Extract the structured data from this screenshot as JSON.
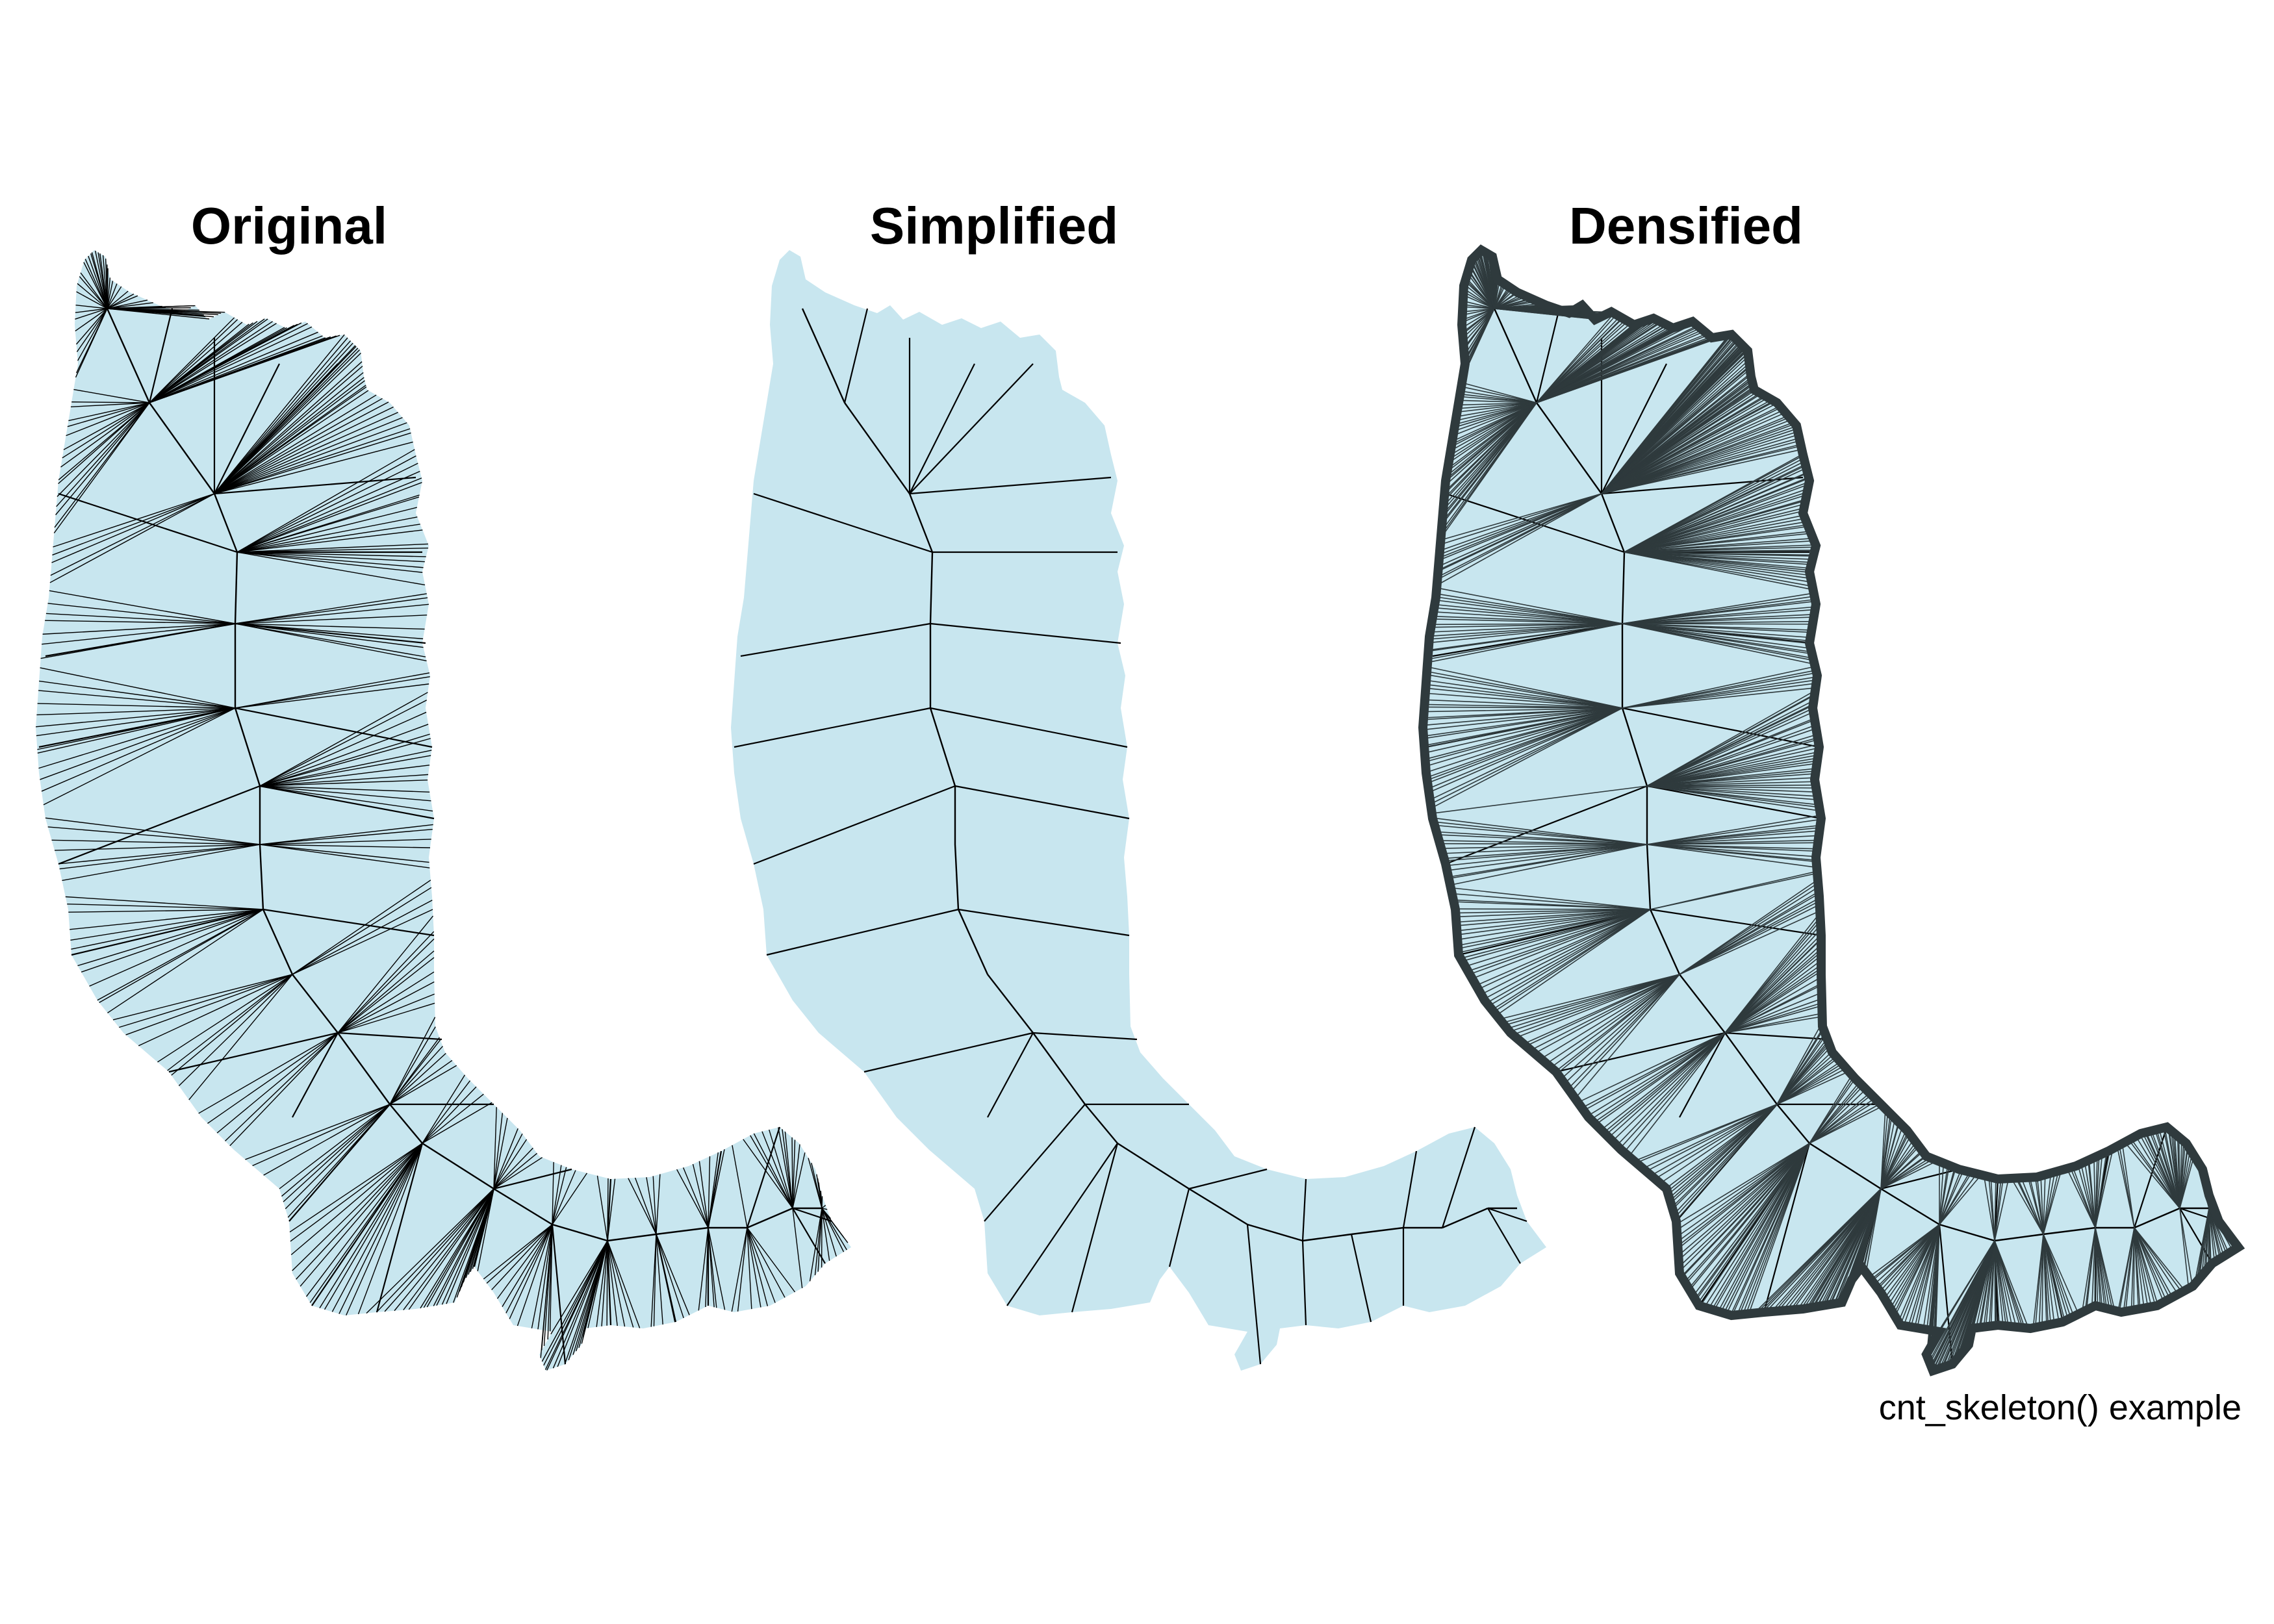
{
  "figure": {
    "panels": [
      {
        "title": "Original",
        "style": "original"
      },
      {
        "title": "Simplified",
        "style": "simplified"
      },
      {
        "title": "Densified",
        "style": "densified"
      }
    ],
    "caption": "cnt_skeleton() example"
  },
  "colors": {
    "land_fill": "#c8e6ef",
    "skeleton_line": "#000000",
    "densified_dark": "#2f3a3d",
    "background": "#ffffff"
  }
}
